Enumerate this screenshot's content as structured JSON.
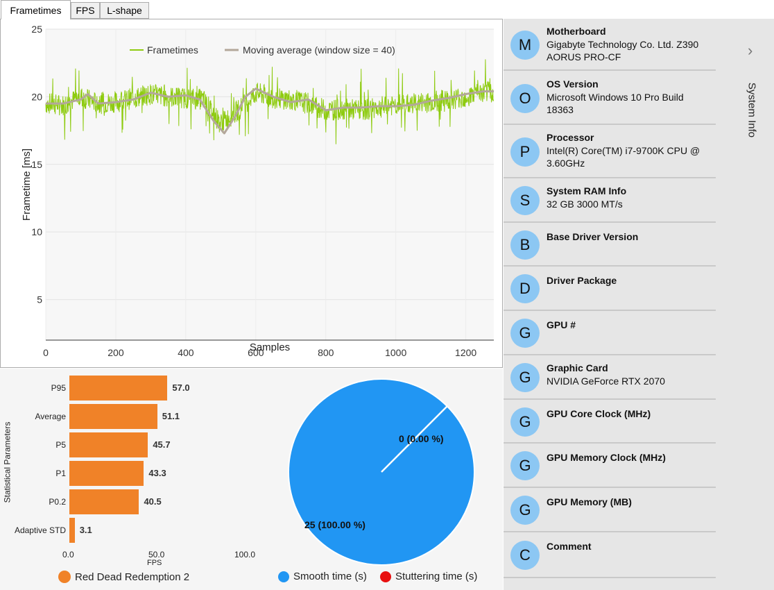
{
  "tabs": [
    {
      "label": "Frametimes",
      "active": true
    },
    {
      "label": "FPS",
      "active": false
    },
    {
      "label": "L-shape",
      "active": false
    }
  ],
  "frametime_chart": {
    "legend": {
      "frametimes": "Frametimes",
      "moving_average": "Moving average (window size = 40)"
    },
    "colors": {
      "frametimes": "#8ecb10",
      "moving_average": "#b3a79a"
    },
    "xlabel": "Samples",
    "ylabel": "Frametime [ms]",
    "x_ticks": [
      "0",
      "200",
      "400",
      "600",
      "800",
      "1000",
      "1200"
    ],
    "y_ticks": [
      "25",
      "20",
      "15",
      "10",
      "5"
    ]
  },
  "chart_data": [
    {
      "type": "line",
      "xlabel": "Samples",
      "ylabel": "Frametime [ms]",
      "xlim": [
        0,
        1280
      ],
      "ylim": [
        2,
        25
      ],
      "series": [
        {
          "name": "Frametimes",
          "x": [
            0,
            50,
            100,
            150,
            200,
            250,
            300,
            350,
            400,
            450,
            500,
            550,
            600,
            650,
            700,
            750,
            800,
            850,
            900,
            950,
            1000,
            1050,
            1100,
            1150,
            1200,
            1250,
            1280
          ],
          "y": [
            19.5,
            19.4,
            20.0,
            19.5,
            19.6,
            19.9,
            20.2,
            20.0,
            19.9,
            19.8,
            18.0,
            19.0,
            20.3,
            19.9,
            19.8,
            19.5,
            19.0,
            19.1,
            19.0,
            19.2,
            19.4,
            19.5,
            19.6,
            19.8,
            20.0,
            20.3,
            20.4
          ]
        },
        {
          "name": "Moving average (window size = 40)",
          "x": [
            0,
            50,
            100,
            120,
            150,
            200,
            250,
            300,
            350,
            400,
            440,
            480,
            510,
            540,
            570,
            600,
            650,
            700,
            750,
            800,
            850,
            900,
            950,
            1000,
            1050,
            1100,
            1150,
            1200,
            1250,
            1280
          ],
          "y": [
            19.5,
            19.5,
            19.8,
            20.2,
            19.5,
            19.6,
            19.8,
            20.3,
            20.0,
            20.1,
            19.8,
            18.2,
            17.3,
            18.5,
            20.0,
            20.6,
            20.0,
            19.6,
            19.8,
            19.0,
            19.2,
            19.2,
            19.3,
            19.3,
            19.4,
            19.7,
            19.9,
            20.2,
            20.4,
            20.4
          ]
        }
      ]
    },
    {
      "type": "bar",
      "orientation": "horizontal",
      "ylabel": "Statistical Parameters",
      "xlabel": "FPS",
      "xlim": [
        0,
        100
      ],
      "x_ticks": [
        "0.0",
        "50.0",
        "100.0"
      ],
      "categories": [
        "P95",
        "Average",
        "P5",
        "P1",
        "P0.2",
        "Adaptive STD"
      ],
      "values": [
        57.0,
        51.1,
        45.7,
        43.3,
        40.5,
        3.1
      ],
      "value_labels": [
        "57.0",
        "51.1",
        "45.7",
        "43.3",
        "40.5",
        "3.1"
      ],
      "series": [
        {
          "name": "Red Dead Redemption 2",
          "color": "#f08228"
        }
      ]
    },
    {
      "type": "pie",
      "slices": [
        {
          "name": "Smooth time (s)",
          "value": 25,
          "label": "25 (100.00 %)",
          "color": "#2196f3"
        },
        {
          "name": "Stuttering time (s)",
          "value": 0,
          "label": "0 (0.00 %)",
          "color": "#e81010"
        }
      ]
    }
  ],
  "bar_legend": {
    "label": "Red Dead Redemption 2",
    "color": "#f08228"
  },
  "pie_legend": [
    {
      "label": "Smooth time (s)",
      "color": "#2196f3"
    },
    {
      "label": "Stuttering time (s)",
      "color": "#e81010"
    }
  ],
  "system_info": {
    "title": "System Info",
    "items": [
      {
        "letter": "M",
        "title": "Motherboard",
        "value": "Gigabyte Technology Co. Ltd. Z390 AORUS PRO-CF"
      },
      {
        "letter": "O",
        "title": "OS Version",
        "value": "Microsoft Windows 10 Pro Build 18363"
      },
      {
        "letter": "P",
        "title": "Processor",
        "value": "Intel(R) Core(TM) i7-9700K CPU @ 3.60GHz"
      },
      {
        "letter": "S",
        "title": "System RAM Info",
        "value": "32 GB 3000 MT/s"
      },
      {
        "letter": "B",
        "title": "Base Driver Version",
        "value": ""
      },
      {
        "letter": "D",
        "title": "Driver Package",
        "value": ""
      },
      {
        "letter": "G",
        "title": "GPU #",
        "value": ""
      },
      {
        "letter": "G",
        "title": "Graphic Card",
        "value": "NVIDIA GeForce RTX 2070"
      },
      {
        "letter": "G",
        "title": "GPU Core Clock (MHz)",
        "value": ""
      },
      {
        "letter": "G",
        "title": "GPU Memory Clock (MHz)",
        "value": ""
      },
      {
        "letter": "G",
        "title": "GPU Memory (MB)",
        "value": ""
      },
      {
        "letter": "C",
        "title": "Comment",
        "value": ""
      }
    ]
  }
}
